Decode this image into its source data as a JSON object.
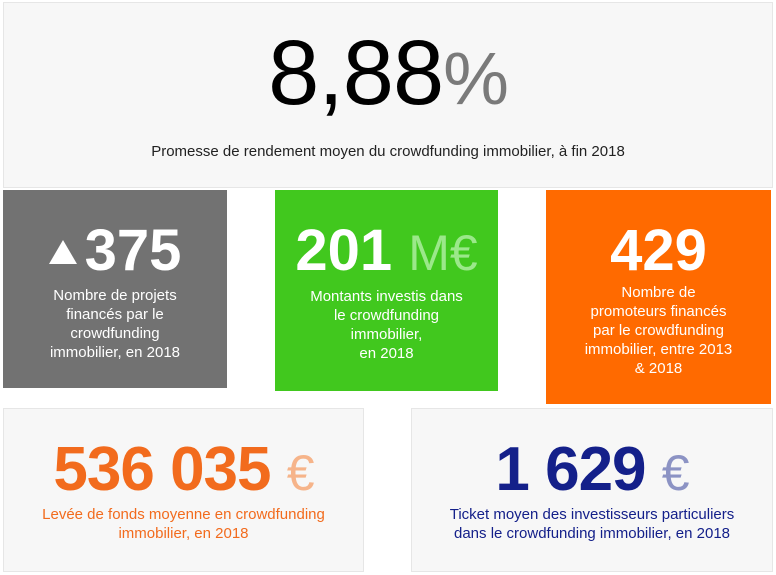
{
  "hero": {
    "value": "8,88",
    "unit": "%",
    "caption": "Promesse de rendement moyen du crowdfunding immobilier, à fin 2018"
  },
  "stats": [
    {
      "value": "375",
      "unit": "",
      "label_lines": [
        "Nombre de projets",
        "financés par le",
        "crowdfunding",
        "immobilier, en 2018"
      ],
      "color": "#727272",
      "icon": "up-triangle-icon"
    },
    {
      "value": "201",
      "unit": "M€",
      "label_lines": [
        "Montants investis dans",
        "le crowdfunding",
        "immobilier,",
        "en 2018"
      ],
      "color": "#41c81e"
    },
    {
      "value": "429",
      "unit": "",
      "label_lines": [
        "Nombre de",
        "promoteurs financés",
        "par le crowdfunding",
        "immobilier, entre 2013",
        "& 2018"
      ],
      "color": "#ff6a00"
    }
  ],
  "bottom": [
    {
      "value": "536 035",
      "unit": "€",
      "label_lines": [
        "Levée de fonds moyenne en crowdfunding",
        "immobilier, en 2018"
      ],
      "color": "#f26b1d"
    },
    {
      "value": "1 629",
      "unit": "€",
      "label_lines": [
        "Ticket moyen des investisseurs particuliers",
        "dans le crowdfunding immobilier, en 2018"
      ],
      "color": "#14208a"
    }
  ]
}
